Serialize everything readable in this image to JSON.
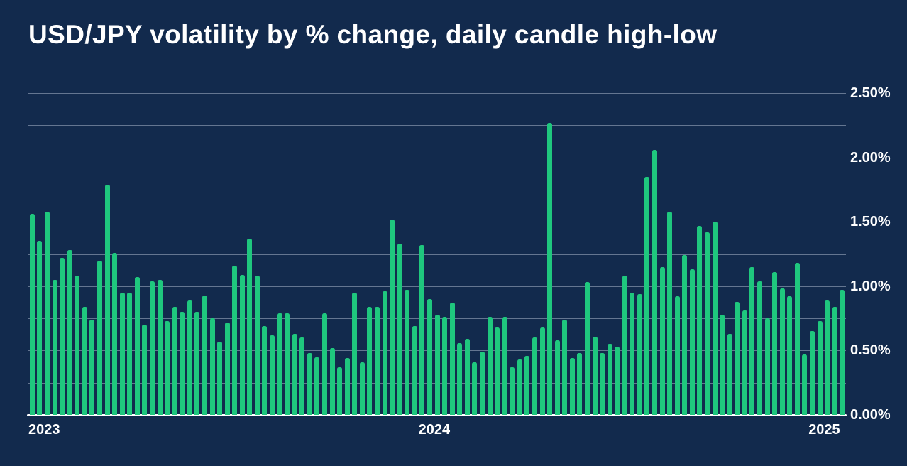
{
  "colors": {
    "background": "#122A4D",
    "bar": "#1FC77E",
    "gridline": "rgba(214,225,240,0.42)",
    "axis_line": "#FFFFFF",
    "text": "#FFFFFF"
  },
  "chart_data": {
    "type": "bar",
    "title": "USD/JPY volatility by % change, daily candle high-low",
    "xlabel": "",
    "ylabel": "",
    "x_unit": "week",
    "grid": "horizontal",
    "legend": "none",
    "y_axis": {
      "side": "right",
      "min": 0.0,
      "max": 2.5,
      "grid_step": 0.25,
      "label_step": 0.5,
      "labels": [
        "0.00%",
        "0.50%",
        "1.00%",
        "1.50%",
        "2.00%",
        "2.50%"
      ]
    },
    "x_axis": {
      "year_ticks": [
        {
          "label": "2023",
          "bar_index": 0
        },
        {
          "label": "2024",
          "bar_index": 52
        },
        {
          "label": "2025",
          "bar_index": 104
        }
      ]
    },
    "values": [
      1.56,
      1.35,
      1.58,
      1.05,
      1.22,
      1.28,
      1.08,
      0.84,
      0.74,
      1.2,
      1.79,
      1.26,
      0.95,
      0.95,
      1.07,
      0.7,
      1.04,
      1.05,
      0.73,
      0.84,
      0.8,
      0.89,
      0.8,
      0.93,
      0.75,
      0.57,
      0.72,
      1.16,
      1.09,
      1.37,
      1.08,
      0.69,
      0.62,
      0.79,
      0.79,
      0.63,
      0.6,
      0.48,
      0.45,
      0.79,
      0.52,
      0.37,
      0.44,
      0.95,
      0.41,
      0.84,
      0.84,
      0.96,
      1.52,
      1.33,
      0.97,
      0.69,
      1.32,
      0.9,
      0.78,
      0.76,
      0.87,
      0.56,
      0.59,
      0.41,
      0.49,
      0.76,
      0.68,
      0.76,
      0.37,
      0.43,
      0.46,
      0.6,
      0.68,
      2.27,
      0.58,
      0.74,
      0.44,
      0.48,
      1.03,
      0.61,
      0.48,
      0.55,
      0.53,
      1.08,
      0.95,
      0.94,
      1.85,
      2.06,
      1.15,
      1.58,
      0.92,
      1.24,
      1.13,
      1.47,
      1.42,
      1.5,
      0.78,
      0.63,
      0.88,
      0.81,
      1.15,
      1.04,
      0.75,
      1.11,
      0.98,
      0.92,
      1.18,
      0.47,
      0.65,
      0.73,
      0.89,
      0.84,
      0.97
    ]
  }
}
